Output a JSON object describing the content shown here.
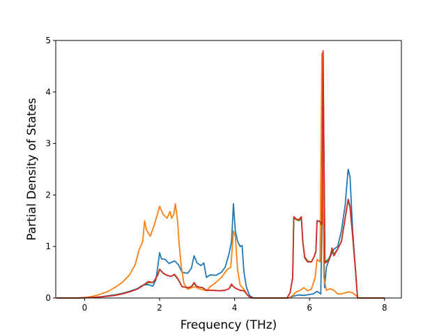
{
  "chart_data": {
    "type": "line",
    "title": "",
    "xlabel": "Frequency (THz)",
    "ylabel": "Partial Density of States",
    "xlim": [
      -0.77,
      8.45
    ],
    "ylim": [
      0,
      5
    ],
    "xticks": [
      0,
      2,
      4,
      6,
      8
    ],
    "xtick_labels": [
      "0",
      "2",
      "4",
      "6",
      "8"
    ],
    "yticks": [
      0,
      1,
      2,
      3,
      4,
      5
    ],
    "ytick_labels": [
      "0",
      "1",
      "2",
      "3",
      "4",
      "5"
    ],
    "grid": false,
    "series": [
      {
        "color": "#1f77b4",
        "points": [
          [
            -0.75,
            0
          ],
          [
            -0.2,
            0
          ],
          [
            0,
            0.005
          ],
          [
            0.2,
            0.01
          ],
          [
            0.4,
            0.02
          ],
          [
            0.6,
            0.04
          ],
          [
            0.8,
            0.06
          ],
          [
            1.0,
            0.09
          ],
          [
            1.2,
            0.13
          ],
          [
            1.4,
            0.18
          ],
          [
            1.55,
            0.25
          ],
          [
            1.7,
            0.26
          ],
          [
            1.82,
            0.23
          ],
          [
            1.9,
            0.35
          ],
          [
            1.95,
            0.6
          ],
          [
            2.0,
            0.88
          ],
          [
            2.05,
            0.76
          ],
          [
            2.15,
            0.75
          ],
          [
            2.25,
            0.67
          ],
          [
            2.4,
            0.72
          ],
          [
            2.5,
            0.65
          ],
          [
            2.6,
            0.5
          ],
          [
            2.75,
            0.48
          ],
          [
            2.85,
            0.58
          ],
          [
            2.92,
            0.82
          ],
          [
            3.0,
            0.68
          ],
          [
            3.1,
            0.63
          ],
          [
            3.18,
            0.68
          ],
          [
            3.25,
            0.4
          ],
          [
            3.35,
            0.45
          ],
          [
            3.5,
            0.44
          ],
          [
            3.65,
            0.5
          ],
          [
            3.75,
            0.6
          ],
          [
            3.85,
            0.85
          ],
          [
            3.92,
            1.1
          ],
          [
            3.97,
            1.83
          ],
          [
            4.02,
            1.3
          ],
          [
            4.08,
            1.1
          ],
          [
            4.15,
            1.0
          ],
          [
            4.2,
            1.02
          ],
          [
            4.25,
            0.5
          ],
          [
            4.32,
            0.2
          ],
          [
            4.4,
            0.05
          ],
          [
            4.5,
            0
          ],
          [
            5.45,
            0
          ],
          [
            5.55,
            0.03
          ],
          [
            5.7,
            0.06
          ],
          [
            5.85,
            0.05
          ],
          [
            6.0,
            0.07
          ],
          [
            6.1,
            0.08
          ],
          [
            6.2,
            0.13
          ],
          [
            6.3,
            0.08
          ],
          [
            6.35,
            2.45
          ],
          [
            6.4,
            0.2
          ],
          [
            6.45,
            0.6
          ],
          [
            6.55,
            0.8
          ],
          [
            6.65,
            0.95
          ],
          [
            6.75,
            1.0
          ],
          [
            6.85,
            1.3
          ],
          [
            6.95,
            1.8
          ],
          [
            7.0,
            2.25
          ],
          [
            7.03,
            2.5
          ],
          [
            7.08,
            2.35
          ],
          [
            7.15,
            1.3
          ],
          [
            7.22,
            0.6
          ],
          [
            7.28,
            0
          ],
          [
            8.0,
            0
          ]
        ]
      },
      {
        "color": "#ff7f0e",
        "points": [
          [
            -0.75,
            0
          ],
          [
            -0.2,
            0
          ],
          [
            0,
            0.01
          ],
          [
            0.2,
            0.03
          ],
          [
            0.4,
            0.07
          ],
          [
            0.6,
            0.12
          ],
          [
            0.8,
            0.2
          ],
          [
            1.0,
            0.3
          ],
          [
            1.2,
            0.45
          ],
          [
            1.35,
            0.65
          ],
          [
            1.45,
            0.93
          ],
          [
            1.55,
            1.1
          ],
          [
            1.6,
            1.5
          ],
          [
            1.65,
            1.32
          ],
          [
            1.75,
            1.2
          ],
          [
            1.85,
            1.4
          ],
          [
            1.95,
            1.65
          ],
          [
            2.0,
            1.78
          ],
          [
            2.1,
            1.62
          ],
          [
            2.2,
            1.55
          ],
          [
            2.28,
            1.68
          ],
          [
            2.32,
            1.55
          ],
          [
            2.38,
            1.63
          ],
          [
            2.42,
            1.83
          ],
          [
            2.48,
            1.5
          ],
          [
            2.52,
            1.05
          ],
          [
            2.58,
            0.6
          ],
          [
            2.65,
            0.28
          ],
          [
            2.75,
            0.17
          ],
          [
            2.85,
            0.2
          ],
          [
            2.95,
            0.22
          ],
          [
            3.05,
            0.18
          ],
          [
            3.15,
            0.16
          ],
          [
            3.25,
            0.14
          ],
          [
            3.35,
            0.22
          ],
          [
            3.5,
            0.3
          ],
          [
            3.65,
            0.4
          ],
          [
            3.8,
            0.55
          ],
          [
            3.9,
            0.6
          ],
          [
            3.97,
            1.3
          ],
          [
            4.02,
            1.2
          ],
          [
            4.08,
            0.55
          ],
          [
            4.15,
            0.25
          ],
          [
            4.25,
            0.17
          ],
          [
            4.35,
            0.05
          ],
          [
            4.45,
            0
          ],
          [
            5.45,
            0
          ],
          [
            5.55,
            0.05
          ],
          [
            5.65,
            0.12
          ],
          [
            5.75,
            0.15
          ],
          [
            5.85,
            0.2
          ],
          [
            5.95,
            0.14
          ],
          [
            6.05,
            0.17
          ],
          [
            6.15,
            0.4
          ],
          [
            6.2,
            0.75
          ],
          [
            6.28,
            0.7
          ],
          [
            6.33,
            4.75
          ],
          [
            6.38,
            0.4
          ],
          [
            6.45,
            0.15
          ],
          [
            6.55,
            0.18
          ],
          [
            6.65,
            0.15
          ],
          [
            6.75,
            0.08
          ],
          [
            6.85,
            0.08
          ],
          [
            6.95,
            0.1
          ],
          [
            7.05,
            0.12
          ],
          [
            7.15,
            0.1
          ],
          [
            7.25,
            0.04
          ],
          [
            7.3,
            0
          ],
          [
            8.0,
            0
          ]
        ]
      },
      {
        "color": "#2ca02c",
        "points": [
          [
            -0.75,
            0
          ],
          [
            -0.2,
            0
          ],
          [
            0,
            0.004
          ],
          [
            0.2,
            0.01
          ],
          [
            0.4,
            0.02
          ],
          [
            0.6,
            0.035
          ],
          [
            0.8,
            0.05
          ],
          [
            1.0,
            0.08
          ],
          [
            1.2,
            0.12
          ],
          [
            1.4,
            0.17
          ],
          [
            1.55,
            0.24
          ],
          [
            1.7,
            0.3
          ],
          [
            1.82,
            0.3
          ],
          [
            1.9,
            0.38
          ],
          [
            1.95,
            0.45
          ],
          [
            2.0,
            0.55
          ],
          [
            2.1,
            0.48
          ],
          [
            2.2,
            0.44
          ],
          [
            2.3,
            0.42
          ],
          [
            2.4,
            0.45
          ],
          [
            2.5,
            0.35
          ],
          [
            2.6,
            0.22
          ],
          [
            2.75,
            0.2
          ],
          [
            2.85,
            0.22
          ],
          [
            2.92,
            0.28
          ],
          [
            3.0,
            0.22
          ],
          [
            3.15,
            0.2
          ],
          [
            3.25,
            0.15
          ],
          [
            3.4,
            0.15
          ],
          [
            3.6,
            0.14
          ],
          [
            3.75,
            0.15
          ],
          [
            3.85,
            0.18
          ],
          [
            3.92,
            0.25
          ],
          [
            3.97,
            0.22
          ],
          [
            4.05,
            0.18
          ],
          [
            4.15,
            0.15
          ],
          [
            4.25,
            0.14
          ],
          [
            4.32,
            0.08
          ],
          [
            4.4,
            0.02
          ],
          [
            4.5,
            0
          ],
          [
            5.4,
            0
          ],
          [
            5.48,
            0.1
          ],
          [
            5.55,
            0.4
          ],
          [
            5.58,
            1.55
          ],
          [
            5.65,
            1.52
          ],
          [
            5.72,
            1.5
          ],
          [
            5.78,
            1.55
          ],
          [
            5.82,
            1.1
          ],
          [
            5.87,
            0.8
          ],
          [
            5.95,
            0.72
          ],
          [
            6.05,
            0.7
          ],
          [
            6.12,
            0.8
          ],
          [
            6.17,
            0.9
          ],
          [
            6.2,
            1.5
          ],
          [
            6.28,
            1.48
          ],
          [
            6.33,
            1.4
          ],
          [
            6.36,
            4.78
          ],
          [
            6.41,
            0.7
          ],
          [
            6.5,
            0.75
          ],
          [
            6.55,
            0.82
          ],
          [
            6.6,
            0.92
          ],
          [
            6.65,
            0.85
          ],
          [
            6.75,
            0.95
          ],
          [
            6.85,
            1.1
          ],
          [
            6.95,
            1.55
          ],
          [
            7.03,
            1.9
          ],
          [
            7.08,
            1.75
          ],
          [
            7.15,
            1.2
          ],
          [
            7.22,
            0.6
          ],
          [
            7.28,
            0
          ],
          [
            8.0,
            0
          ]
        ]
      },
      {
        "color": "#d62728",
        "points": [
          [
            -0.75,
            0
          ],
          [
            -0.2,
            0
          ],
          [
            0,
            0.004
          ],
          [
            0.2,
            0.01
          ],
          [
            0.4,
            0.02
          ],
          [
            0.6,
            0.035
          ],
          [
            0.8,
            0.05
          ],
          [
            1.0,
            0.08
          ],
          [
            1.2,
            0.12
          ],
          [
            1.4,
            0.17
          ],
          [
            1.55,
            0.24
          ],
          [
            1.7,
            0.32
          ],
          [
            1.82,
            0.3
          ],
          [
            1.9,
            0.38
          ],
          [
            1.95,
            0.45
          ],
          [
            2.0,
            0.56
          ],
          [
            2.1,
            0.48
          ],
          [
            2.2,
            0.44
          ],
          [
            2.3,
            0.42
          ],
          [
            2.4,
            0.46
          ],
          [
            2.5,
            0.36
          ],
          [
            2.6,
            0.22
          ],
          [
            2.75,
            0.2
          ],
          [
            2.85,
            0.22
          ],
          [
            2.92,
            0.3
          ],
          [
            3.0,
            0.22
          ],
          [
            3.15,
            0.2
          ],
          [
            3.25,
            0.15
          ],
          [
            3.4,
            0.15
          ],
          [
            3.6,
            0.14
          ],
          [
            3.75,
            0.15
          ],
          [
            3.85,
            0.18
          ],
          [
            3.92,
            0.27
          ],
          [
            3.97,
            0.22
          ],
          [
            4.05,
            0.18
          ],
          [
            4.15,
            0.15
          ],
          [
            4.25,
            0.14
          ],
          [
            4.32,
            0.08
          ],
          [
            4.4,
            0.02
          ],
          [
            4.5,
            0
          ],
          [
            5.4,
            0
          ],
          [
            5.48,
            0.1
          ],
          [
            5.55,
            0.4
          ],
          [
            5.58,
            1.58
          ],
          [
            5.65,
            1.53
          ],
          [
            5.72,
            1.52
          ],
          [
            5.78,
            1.58
          ],
          [
            5.82,
            1.1
          ],
          [
            5.87,
            0.78
          ],
          [
            5.95,
            0.7
          ],
          [
            6.05,
            0.7
          ],
          [
            6.12,
            0.8
          ],
          [
            6.17,
            0.92
          ],
          [
            6.2,
            1.5
          ],
          [
            6.28,
            1.49
          ],
          [
            6.33,
            1.42
          ],
          [
            6.36,
            4.8
          ],
          [
            6.41,
            0.68
          ],
          [
            6.5,
            0.72
          ],
          [
            6.55,
            0.8
          ],
          [
            6.6,
            0.97
          ],
          [
            6.65,
            0.82
          ],
          [
            6.75,
            0.95
          ],
          [
            6.85,
            1.1
          ],
          [
            6.95,
            1.55
          ],
          [
            7.03,
            1.92
          ],
          [
            7.08,
            1.78
          ],
          [
            7.15,
            1.2
          ],
          [
            7.22,
            0.6
          ],
          [
            7.28,
            0
          ],
          [
            8.0,
            0
          ]
        ]
      }
    ]
  }
}
